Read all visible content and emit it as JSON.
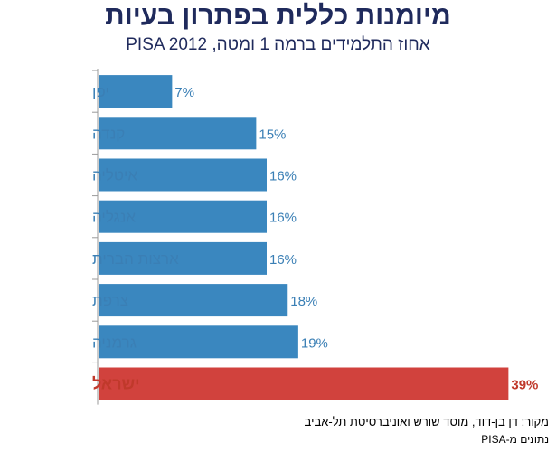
{
  "chart_data": {
    "type": "bar",
    "orientation": "horizontal",
    "title": "מיומנות כללית בפתרון בעיות",
    "subtitle": "אחוז התלמידים ברמה 1 ומטה, PISA 2012",
    "categories": [
      "יפן",
      "קנדה",
      "איטליה",
      "אנגליה",
      "ארצות הברית",
      "צרפת",
      "גרמניה",
      "ישראל"
    ],
    "values": [
      7,
      15,
      16,
      16,
      16,
      18,
      19,
      39
    ],
    "value_labels": [
      "7%",
      "15%",
      "16%",
      "16%",
      "16%",
      "18%",
      "19%",
      "39%"
    ],
    "highlight_index": 7,
    "xlim": [
      0,
      40
    ],
    "grid": false,
    "colors": {
      "bar": "#3a87bf",
      "highlight": "#d1423d",
      "label": "#3a7fb5",
      "highlight_label": "#c0392b",
      "title": "#1f2a5c"
    }
  },
  "source_line": "מקור:  דן בן-דוד, מוסד שורש ואוניברסיטת תל-אביב",
  "data_note": "נתונים מ-PISA"
}
